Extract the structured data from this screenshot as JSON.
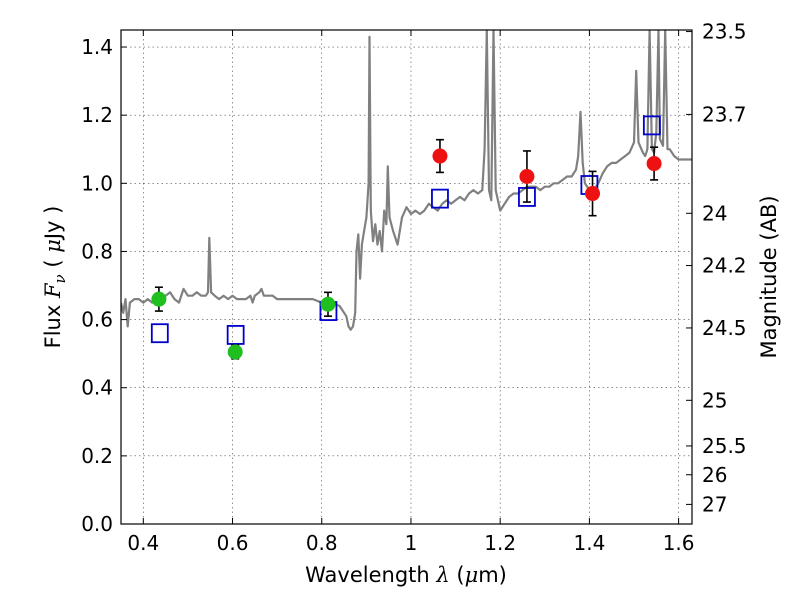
{
  "chart_data": {
    "type": "scatter",
    "xlabel": {
      "prefix": "Wavelength  ",
      "symbol": "λ",
      "mid": " (",
      "unit_symbol": "μ",
      "suffix": "m)"
    },
    "ylabel": {
      "prefix": "Flux  ",
      "symbol": "F",
      "sub": "ν",
      "mid": "  ( ",
      "unit_symbol": "μ",
      "suffix": "Jy )"
    },
    "y2label": "Magnitude (AB)",
    "xlim": [
      0.35,
      1.63
    ],
    "ylim": [
      0.0,
      1.45
    ],
    "x_ticks": [
      {
        "v": 0.4,
        "label": "0.4"
      },
      {
        "v": 0.6,
        "label": "0.6"
      },
      {
        "v": 0.8,
        "label": "0.8"
      },
      {
        "v": 1.0,
        "label": "1"
      },
      {
        "v": 1.2,
        "label": "1.2"
      },
      {
        "v": 1.4,
        "label": "1.4"
      },
      {
        "v": 1.6,
        "label": "1.6"
      }
    ],
    "y_ticks": [
      {
        "v": 0.0,
        "label": "0.0"
      },
      {
        "v": 0.2,
        "label": "0.2"
      },
      {
        "v": 0.4,
        "label": "0.4"
      },
      {
        "v": 0.6,
        "label": "0.6"
      },
      {
        "v": 0.8,
        "label": "0.8"
      },
      {
        "v": 1.0,
        "label": "1.0"
      },
      {
        "v": 1.2,
        "label": "1.2"
      },
      {
        "v": 1.4,
        "label": "1.4"
      }
    ],
    "y2_ticks": [
      {
        "mag": 23.5,
        "label": "23.5"
      },
      {
        "mag": 23.7,
        "label": "23.7"
      },
      {
        "mag": 24,
        "label": "24"
      },
      {
        "mag": 24.2,
        "label": "24.2"
      },
      {
        "mag": 24.5,
        "label": "24.5"
      },
      {
        "mag": 25,
        "label": "25"
      },
      {
        "mag": 25.5,
        "label": "25.5"
      },
      {
        "mag": 26,
        "label": "26"
      },
      {
        "mag": 27,
        "label": "27"
      }
    ],
    "grid": true,
    "colors": {
      "model": "#808080",
      "optical": "#1fbf1f",
      "nir": "#ee1111",
      "model_box": "#0000cc",
      "error": "#000000"
    },
    "series": [
      {
        "kind": "line",
        "points": [
          [
            0.35,
            0.65
          ],
          [
            0.355,
            0.62
          ],
          [
            0.36,
            0.66
          ],
          [
            0.365,
            0.58
          ],
          [
            0.37,
            0.65
          ],
          [
            0.38,
            0.66
          ],
          [
            0.39,
            0.66
          ],
          [
            0.4,
            0.65
          ],
          [
            0.41,
            0.66
          ],
          [
            0.42,
            0.65
          ],
          [
            0.43,
            0.67
          ],
          [
            0.44,
            0.67
          ],
          [
            0.45,
            0.67
          ],
          [
            0.46,
            0.68
          ],
          [
            0.47,
            0.66
          ],
          [
            0.48,
            0.65
          ],
          [
            0.49,
            0.69
          ],
          [
            0.5,
            0.67
          ],
          [
            0.51,
            0.67
          ],
          [
            0.52,
            0.68
          ],
          [
            0.53,
            0.67
          ],
          [
            0.54,
            0.67
          ],
          [
            0.545,
            0.68
          ],
          [
            0.548,
            0.84
          ],
          [
            0.552,
            0.68
          ],
          [
            0.56,
            0.67
          ],
          [
            0.57,
            0.66
          ],
          [
            0.58,
            0.67
          ],
          [
            0.59,
            0.66
          ],
          [
            0.6,
            0.67
          ],
          [
            0.61,
            0.66
          ],
          [
            0.62,
            0.66
          ],
          [
            0.63,
            0.66
          ],
          [
            0.64,
            0.67
          ],
          [
            0.645,
            0.65
          ],
          [
            0.65,
            0.67
          ],
          [
            0.66,
            0.68
          ],
          [
            0.665,
            0.69
          ],
          [
            0.67,
            0.67
          ],
          [
            0.68,
            0.67
          ],
          [
            0.69,
            0.67
          ],
          [
            0.7,
            0.66
          ],
          [
            0.71,
            0.66
          ],
          [
            0.72,
            0.66
          ],
          [
            0.74,
            0.66
          ],
          [
            0.76,
            0.66
          ],
          [
            0.78,
            0.66
          ],
          [
            0.8,
            0.65
          ],
          [
            0.82,
            0.65
          ],
          [
            0.84,
            0.64
          ],
          [
            0.855,
            0.61
          ],
          [
            0.86,
            0.58
          ],
          [
            0.865,
            0.57
          ],
          [
            0.87,
            0.58
          ],
          [
            0.875,
            0.62
          ],
          [
            0.878,
            0.8
          ],
          [
            0.882,
            0.85
          ],
          [
            0.886,
            0.72
          ],
          [
            0.89,
            0.82
          ],
          [
            0.895,
            0.86
          ],
          [
            0.9,
            0.9
          ],
          [
            0.905,
            1.0
          ],
          [
            0.907,
            1.43
          ],
          [
            0.91,
            0.92
          ],
          [
            0.915,
            0.83
          ],
          [
            0.92,
            0.88
          ],
          [
            0.925,
            0.82
          ],
          [
            0.93,
            0.86
          ],
          [
            0.935,
            0.8
          ],
          [
            0.94,
            0.92
          ],
          [
            0.945,
            0.88
          ],
          [
            0.948,
            1.05
          ],
          [
            0.952,
            0.9
          ],
          [
            0.96,
            0.86
          ],
          [
            0.97,
            0.82
          ],
          [
            0.98,
            0.9
          ],
          [
            0.99,
            0.93
          ],
          [
            1.0,
            0.91
          ],
          [
            1.01,
            0.92
          ],
          [
            1.02,
            0.91
          ],
          [
            1.03,
            0.92
          ],
          [
            1.04,
            0.94
          ],
          [
            1.05,
            0.93
          ],
          [
            1.06,
            0.92
          ],
          [
            1.07,
            0.94
          ],
          [
            1.08,
            0.95
          ],
          [
            1.09,
            0.94
          ],
          [
            1.1,
            0.95
          ],
          [
            1.11,
            0.96
          ],
          [
            1.12,
            0.95
          ],
          [
            1.13,
            0.97
          ],
          [
            1.14,
            0.98
          ],
          [
            1.15,
            0.97
          ],
          [
            1.16,
            0.98
          ],
          [
            1.165,
            1.1
          ],
          [
            1.17,
            1.45
          ],
          [
            1.175,
            0.98
          ],
          [
            1.18,
            0.95
          ],
          [
            1.185,
            1.45
          ],
          [
            1.19,
            0.98
          ],
          [
            1.2,
            0.92
          ],
          [
            1.21,
            0.94
          ],
          [
            1.22,
            0.96
          ],
          [
            1.23,
            0.97
          ],
          [
            1.24,
            0.97
          ],
          [
            1.25,
            0.98
          ],
          [
            1.26,
            0.99
          ],
          [
            1.27,
            0.99
          ],
          [
            1.28,
            0.99
          ],
          [
            1.29,
            0.98
          ],
          [
            1.3,
            0.99
          ],
          [
            1.31,
            0.99
          ],
          [
            1.32,
            1.0
          ],
          [
            1.33,
            1.0
          ],
          [
            1.34,
            1.01
          ],
          [
            1.35,
            1.02
          ],
          [
            1.36,
            1.02
          ],
          [
            1.37,
            1.04
          ],
          [
            1.375,
            1.08
          ],
          [
            1.38,
            1.21
          ],
          [
            1.385,
            1.06
          ],
          [
            1.39,
            1.0
          ],
          [
            1.4,
            0.98
          ],
          [
            1.41,
            0.98
          ],
          [
            1.42,
            1.0
          ],
          [
            1.43,
            1.03
          ],
          [
            1.44,
            1.05
          ],
          [
            1.45,
            1.06
          ],
          [
            1.46,
            1.06
          ],
          [
            1.47,
            1.07
          ],
          [
            1.48,
            1.08
          ],
          [
            1.49,
            1.09
          ],
          [
            1.5,
            1.12
          ],
          [
            1.505,
            1.33
          ],
          [
            1.51,
            1.12
          ],
          [
            1.52,
            1.09
          ],
          [
            1.525,
            1.08
          ],
          [
            1.53,
            1.1
          ],
          [
            1.535,
            1.45
          ],
          [
            1.54,
            1.1
          ],
          [
            1.545,
            1.09
          ],
          [
            1.55,
            1.15
          ],
          [
            1.555,
            1.45
          ],
          [
            1.558,
            1.13
          ],
          [
            1.565,
            1.11
          ],
          [
            1.57,
            1.45
          ],
          [
            1.575,
            1.1
          ],
          [
            1.58,
            1.1
          ],
          [
            1.59,
            1.08
          ],
          [
            1.6,
            1.07
          ],
          [
            1.61,
            1.07
          ],
          [
            1.62,
            1.07
          ],
          [
            1.63,
            1.07
          ]
        ]
      },
      {
        "kind": "box",
        "x": [
          0.437,
          0.607,
          0.815,
          1.065,
          1.26,
          1.4,
          1.54
        ],
        "y": [
          0.56,
          0.555,
          0.625,
          0.955,
          0.96,
          0.995,
          1.17
        ]
      },
      {
        "kind": "optical",
        "x": [
          0.435,
          0.606,
          0.814
        ],
        "y": [
          0.66,
          0.505,
          0.645
        ],
        "err": [
          0.035,
          0.02,
          0.035
        ]
      },
      {
        "kind": "nir",
        "x": [
          1.065,
          1.26,
          1.407,
          1.545
        ],
        "y": [
          1.08,
          1.02,
          0.97,
          1.058
        ],
        "err": [
          0.048,
          0.075,
          0.065,
          0.048
        ]
      }
    ]
  }
}
